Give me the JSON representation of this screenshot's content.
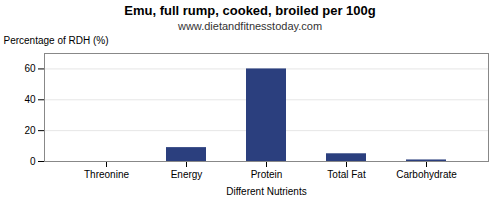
{
  "chart_data": {
    "type": "bar",
    "title": "Emu, full rump, cooked, broiled per 100g",
    "subtitle": "www.dietandfitnesstoday.com",
    "xlabel": "Different Nutrients",
    "ylabel": "Percentage of RDH (%)",
    "categories": [
      "Threonine",
      "Energy",
      "Protein",
      "Total Fat",
      "Carbohydrate"
    ],
    "values": [
      0,
      9,
      60,
      5,
      1
    ],
    "color": "#2b3f7e",
    "ylim": [
      0,
      70
    ],
    "yticks": [
      0,
      20,
      40,
      60
    ],
    "grid": true
  }
}
